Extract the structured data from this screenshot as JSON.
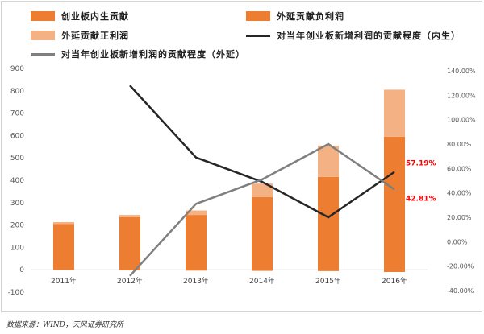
{
  "chart_data": {
    "type": "bar+line",
    "categories": [
      "2011年",
      "2012年",
      "2013年",
      "2014年",
      "2015年",
      "2016年"
    ],
    "bar_series": [
      {
        "name": "创业板内生贡献",
        "color": "#ed7d31",
        "values": [
          205,
          235,
          245,
          325,
          415,
          595
        ]
      },
      {
        "name": "外延贡献负利润",
        "color": "#ed7d31",
        "values": [
          -2,
          -3,
          -4,
          -5,
          -6,
          -10
        ]
      },
      {
        "name": "外延贡献正利润",
        "color": "#f4b183",
        "values": [
          8,
          10,
          20,
          60,
          140,
          210
        ]
      }
    ],
    "line_series": [
      {
        "name": "对当年创业板新增利润的贡献程度（内生）",
        "color": "#262626",
        "values": [
          null,
          1.28,
          0.69,
          0.49,
          0.2,
          0.5719
        ]
      },
      {
        "name": "对当年创业板新增利润的贡献程度（外延）",
        "color": "#7f7f7f",
        "values": [
          null,
          -0.28,
          0.31,
          0.51,
          0.8,
          0.4281
        ]
      }
    ],
    "point_labels": {
      "inner_2016": "57.19%",
      "outer_2016": "42.81%",
      "color": "#ff0000"
    },
    "y_left": {
      "min": -100,
      "max": 900,
      "step": 100,
      "ticks": [
        "-100",
        "0",
        "100",
        "200",
        "300",
        "400",
        "500",
        "600",
        "700",
        "800",
        "900"
      ]
    },
    "y_right": {
      "min": -0.4,
      "max": 1.4,
      "step": 0.2,
      "ticks": [
        "-40.00%",
        "-20.00%",
        "0.00%",
        "20.00%",
        "40.00%",
        "60.00%",
        "80.00%",
        "100.00%",
        "120.00%",
        "140.00%"
      ]
    },
    "grid": false,
    "legend_position": "top"
  },
  "source_text": "数据来源：WIND，天风证券研究所"
}
